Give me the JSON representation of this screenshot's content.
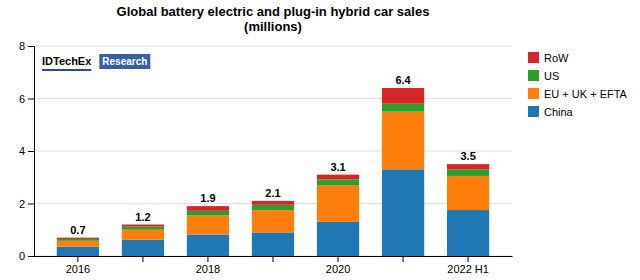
{
  "chart_data": {
    "type": "bar",
    "stacked": true,
    "title": "Global battery electric and plug-in hybrid car sales\n(millions)",
    "categories": [
      "2016",
      null,
      "2018",
      null,
      "2020",
      null,
      "2022 H1"
    ],
    "series": [
      {
        "name": "China",
        "values": [
          0.36,
          0.62,
          0.82,
          0.9,
          1.3,
          3.3,
          1.75
        ]
      },
      {
        "name": "EU + UK + EFTA",
        "values": [
          0.22,
          0.38,
          0.72,
          0.85,
          1.4,
          2.2,
          1.3
        ]
      },
      {
        "name": "US",
        "values": [
          0.07,
          0.12,
          0.18,
          0.2,
          0.22,
          0.3,
          0.25
        ]
      },
      {
        "name": "RoW",
        "values": [
          0.05,
          0.08,
          0.18,
          0.15,
          0.18,
          0.6,
          0.2
        ]
      }
    ],
    "totals": [
      0.7,
      1.2,
      1.9,
      2.1,
      3.1,
      6.4,
      3.5
    ],
    "ylim": [
      0,
      8
    ],
    "yticks": [
      0,
      2,
      4,
      6,
      8
    ],
    "grid": true,
    "legend": "right",
    "annotations": [
      {
        "text": "IDTechEx",
        "color": "#2E4A8A"
      },
      {
        "text": "Research",
        "color": "#3A5FA0"
      }
    ]
  }
}
